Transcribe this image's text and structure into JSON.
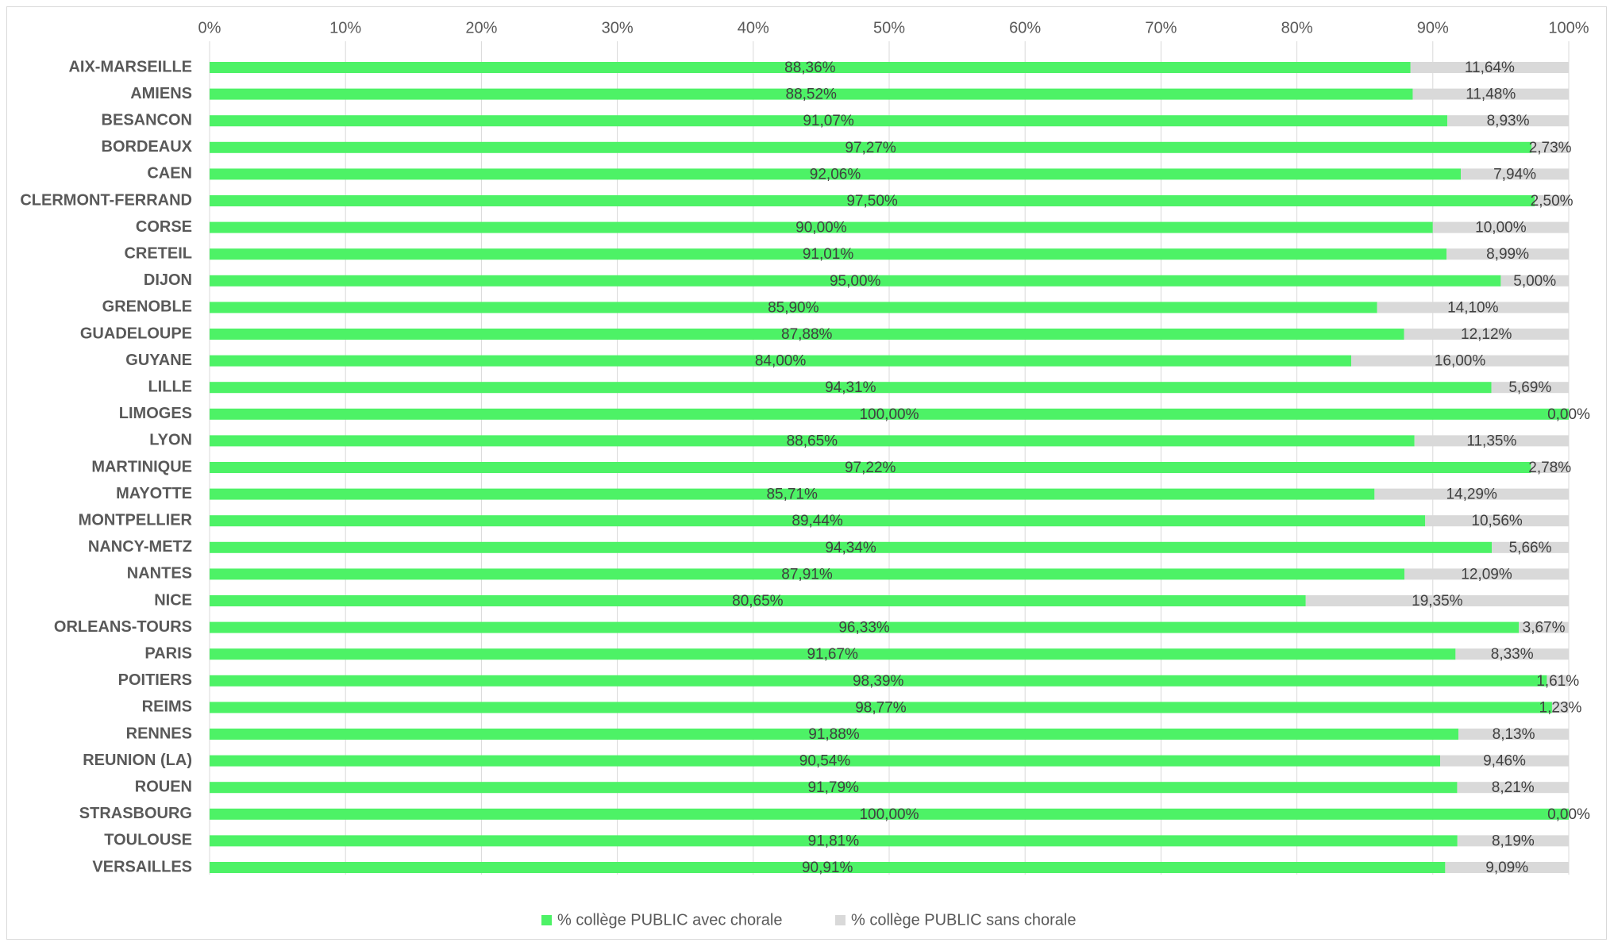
{
  "chart_data": {
    "type": "bar",
    "orientation": "horizontal",
    "stacked": "100%",
    "title": "",
    "xlabel": "",
    "ylabel": "",
    "xlim": [
      0,
      100
    ],
    "x_ticks": [
      "0%",
      "10%",
      "20%",
      "30%",
      "40%",
      "50%",
      "60%",
      "70%",
      "80%",
      "90%",
      "100%"
    ],
    "x_axis_position": "top",
    "grid": true,
    "legend_position": "bottom",
    "categories": [
      "AIX-MARSEILLE",
      "AMIENS",
      "BESANCON",
      "BORDEAUX",
      "CAEN",
      "CLERMONT-FERRAND",
      "CORSE",
      "CRETEIL",
      "DIJON",
      "GRENOBLE",
      "GUADELOUPE",
      "GUYANE",
      "LILLE",
      "LIMOGES",
      "LYON",
      "MARTINIQUE",
      "MAYOTTE",
      "MONTPELLIER",
      "NANCY-METZ",
      "NANTES",
      "NICE",
      "ORLEANS-TOURS",
      "PARIS",
      "POITIERS",
      "REIMS",
      "RENNES",
      "REUNION (LA)",
      "ROUEN",
      "STRASBOURG",
      "TOULOUSE",
      "VERSAILLES"
    ],
    "series": [
      {
        "name": "% collège  PUBLIC avec chorale",
        "color": "#4df266",
        "values": [
          88.36,
          88.52,
          91.07,
          97.27,
          92.06,
          97.5,
          90.0,
          91.01,
          95.0,
          85.9,
          87.88,
          84.0,
          94.31,
          100.0,
          88.65,
          97.22,
          85.71,
          89.44,
          94.34,
          87.91,
          80.65,
          96.33,
          91.67,
          98.39,
          98.77,
          91.88,
          90.54,
          91.79,
          100.0,
          91.81,
          90.91
        ],
        "labels": [
          "88,36%",
          "88,52%",
          "91,07%",
          "97,27%",
          "92,06%",
          "97,50%",
          "90,00%",
          "91,01%",
          "95,00%",
          "85,90%",
          "87,88%",
          "84,00%",
          "94,31%",
          "100,00%",
          "88,65%",
          "97,22%",
          "85,71%",
          "89,44%",
          "94,34%",
          "87,91%",
          "80,65%",
          "96,33%",
          "91,67%",
          "98,39%",
          "98,77%",
          "91,88%",
          "90,54%",
          "91,79%",
          "100,00%",
          "91,81%",
          "90,91%"
        ]
      },
      {
        "name": "% collège  PUBLIC sans chorale",
        "color": "#d9d9d9",
        "values": [
          11.64,
          11.48,
          8.93,
          2.73,
          7.94,
          2.5,
          10.0,
          8.99,
          5.0,
          14.1,
          12.12,
          16.0,
          5.69,
          0.0,
          11.35,
          2.78,
          14.29,
          10.56,
          5.66,
          12.09,
          19.35,
          3.67,
          8.33,
          1.61,
          1.23,
          8.13,
          9.46,
          8.21,
          0.0,
          8.19,
          9.09
        ],
        "labels": [
          "11,64%",
          "11,48%",
          "8,93%",
          "2,73%",
          "7,94%",
          "2,50%",
          "10,00%",
          "8,99%",
          "5,00%",
          "14,10%",
          "12,12%",
          "16,00%",
          "5,69%",
          "0,00%",
          "11,35%",
          "2,78%",
          "14,29%",
          "10,56%",
          "5,66%",
          "12,09%",
          "19,35%",
          "3,67%",
          "8,33%",
          "1,61%",
          "1,23%",
          "8,13%",
          "9,46%",
          "8,21%",
          "0,00%",
          "8,19%",
          "9,09%"
        ]
      }
    ]
  }
}
